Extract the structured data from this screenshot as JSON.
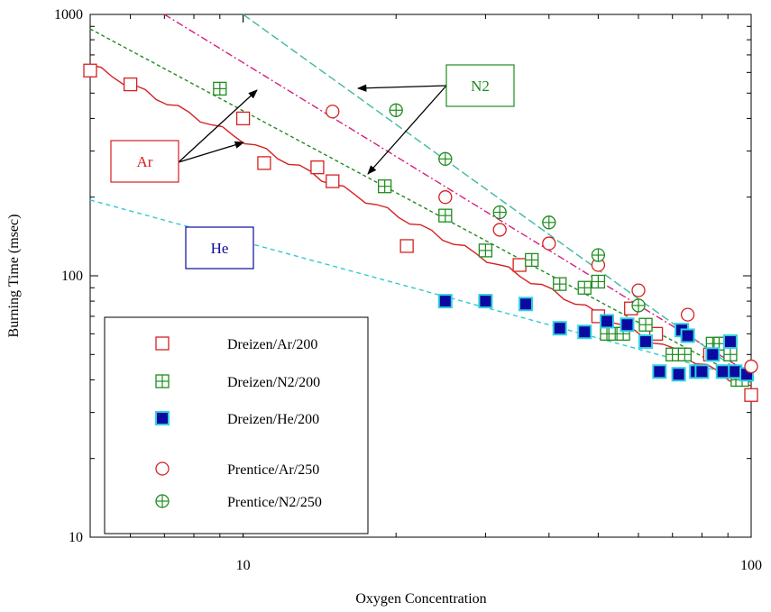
{
  "chart_data": {
    "type": "scatter",
    "title": "",
    "xlabel": "Oxygen Concentration",
    "ylabel": "Burning Time (msec)",
    "xscale": "log",
    "yscale": "log",
    "xlim": [
      5,
      100
    ],
    "ylim": [
      10,
      1000
    ],
    "x_ticks": [
      {
        "value": 10,
        "label": "10"
      },
      {
        "value": 100,
        "label": "100"
      }
    ],
    "y_ticks": [
      {
        "value": 10,
        "label": "10"
      },
      {
        "value": 100,
        "label": "100"
      },
      {
        "value": 1000,
        "label": "1000"
      }
    ],
    "grid": false,
    "legend_position": "bottom-left",
    "series": [
      {
        "name": "Dreizen/Ar/200",
        "marker": "square-open",
        "color": "#d62020",
        "x": [
          5,
          6,
          10,
          11,
          14,
          15,
          21,
          35,
          50,
          58,
          65,
          83,
          100
        ],
        "y": [
          610,
          540,
          400,
          270,
          260,
          230,
          130,
          110,
          70,
          75,
          60,
          50,
          35
        ]
      },
      {
        "name": "Dreizen/N2/200",
        "marker": "square-cross",
        "color": "#1e8c1e",
        "x": [
          9,
          19,
          25,
          30,
          37,
          42,
          47,
          50,
          52,
          54,
          56,
          62,
          70,
          72,
          74,
          84,
          87,
          89,
          91,
          94,
          96
        ],
        "y": [
          520,
          220,
          170,
          125,
          115,
          93,
          90,
          95,
          60,
          60,
          60,
          65,
          50,
          50,
          50,
          55,
          55,
          55,
          50,
          40,
          40
        ]
      },
      {
        "name": "Dreizen/He/200",
        "marker": "square-filled",
        "color": "#0a0aa0",
        "edge": "#30d0e0",
        "x": [
          25,
          30,
          36,
          42,
          47,
          52,
          57,
          62,
          66,
          72,
          73,
          75,
          78,
          80,
          84,
          88,
          91,
          93,
          98
        ],
        "y": [
          80,
          80,
          78,
          63,
          61,
          67,
          65,
          56,
          43,
          42,
          62,
          59,
          43,
          43,
          50,
          43,
          56,
          43,
          42
        ]
      },
      {
        "name": "Prentice/Ar/250",
        "marker": "circle-open",
        "color": "#d62020",
        "x": [
          15,
          25,
          32,
          40,
          50,
          60,
          75,
          100
        ],
        "y": [
          425,
          200,
          150,
          133,
          110,
          88,
          71,
          45
        ]
      },
      {
        "name": "Prentice/N2/250",
        "marker": "circle-cross",
        "color": "#1e8c1e",
        "x": [
          20,
          25,
          32,
          40,
          50,
          60
        ],
        "y": [
          430,
          280,
          175,
          160,
          120,
          77
        ]
      }
    ],
    "fit_lines": [
      {
        "color": "#d62020",
        "dash": "solid",
        "x": [
          5,
          100
        ],
        "y": [
          640,
          37
        ]
      },
      {
        "color": "#1e8c1e",
        "dash": "4,3",
        "x": [
          5,
          100
        ],
        "y": [
          880,
          39
        ]
      },
      {
        "color": "#d62080",
        "dash": "8,3,2,3",
        "x": [
          7,
          100
        ],
        "y": [
          1000,
          42
        ]
      },
      {
        "color": "#40b8a0",
        "dash": "9,4",
        "x": [
          10,
          100
        ],
        "y": [
          1000,
          40
        ]
      },
      {
        "color": "#30c8d0",
        "dash": "5,4",
        "x": [
          5,
          100
        ],
        "y": [
          195,
          40
        ]
      }
    ],
    "annotations": [
      {
        "text": "N2",
        "color": "#1e8c1e",
        "border": "#1e8c1e"
      },
      {
        "text": "Ar",
        "color": "#d62020",
        "border": "#d62020"
      },
      {
        "text": "He",
        "color": "#0a0aa0",
        "border": "#0a0aa0"
      }
    ]
  }
}
